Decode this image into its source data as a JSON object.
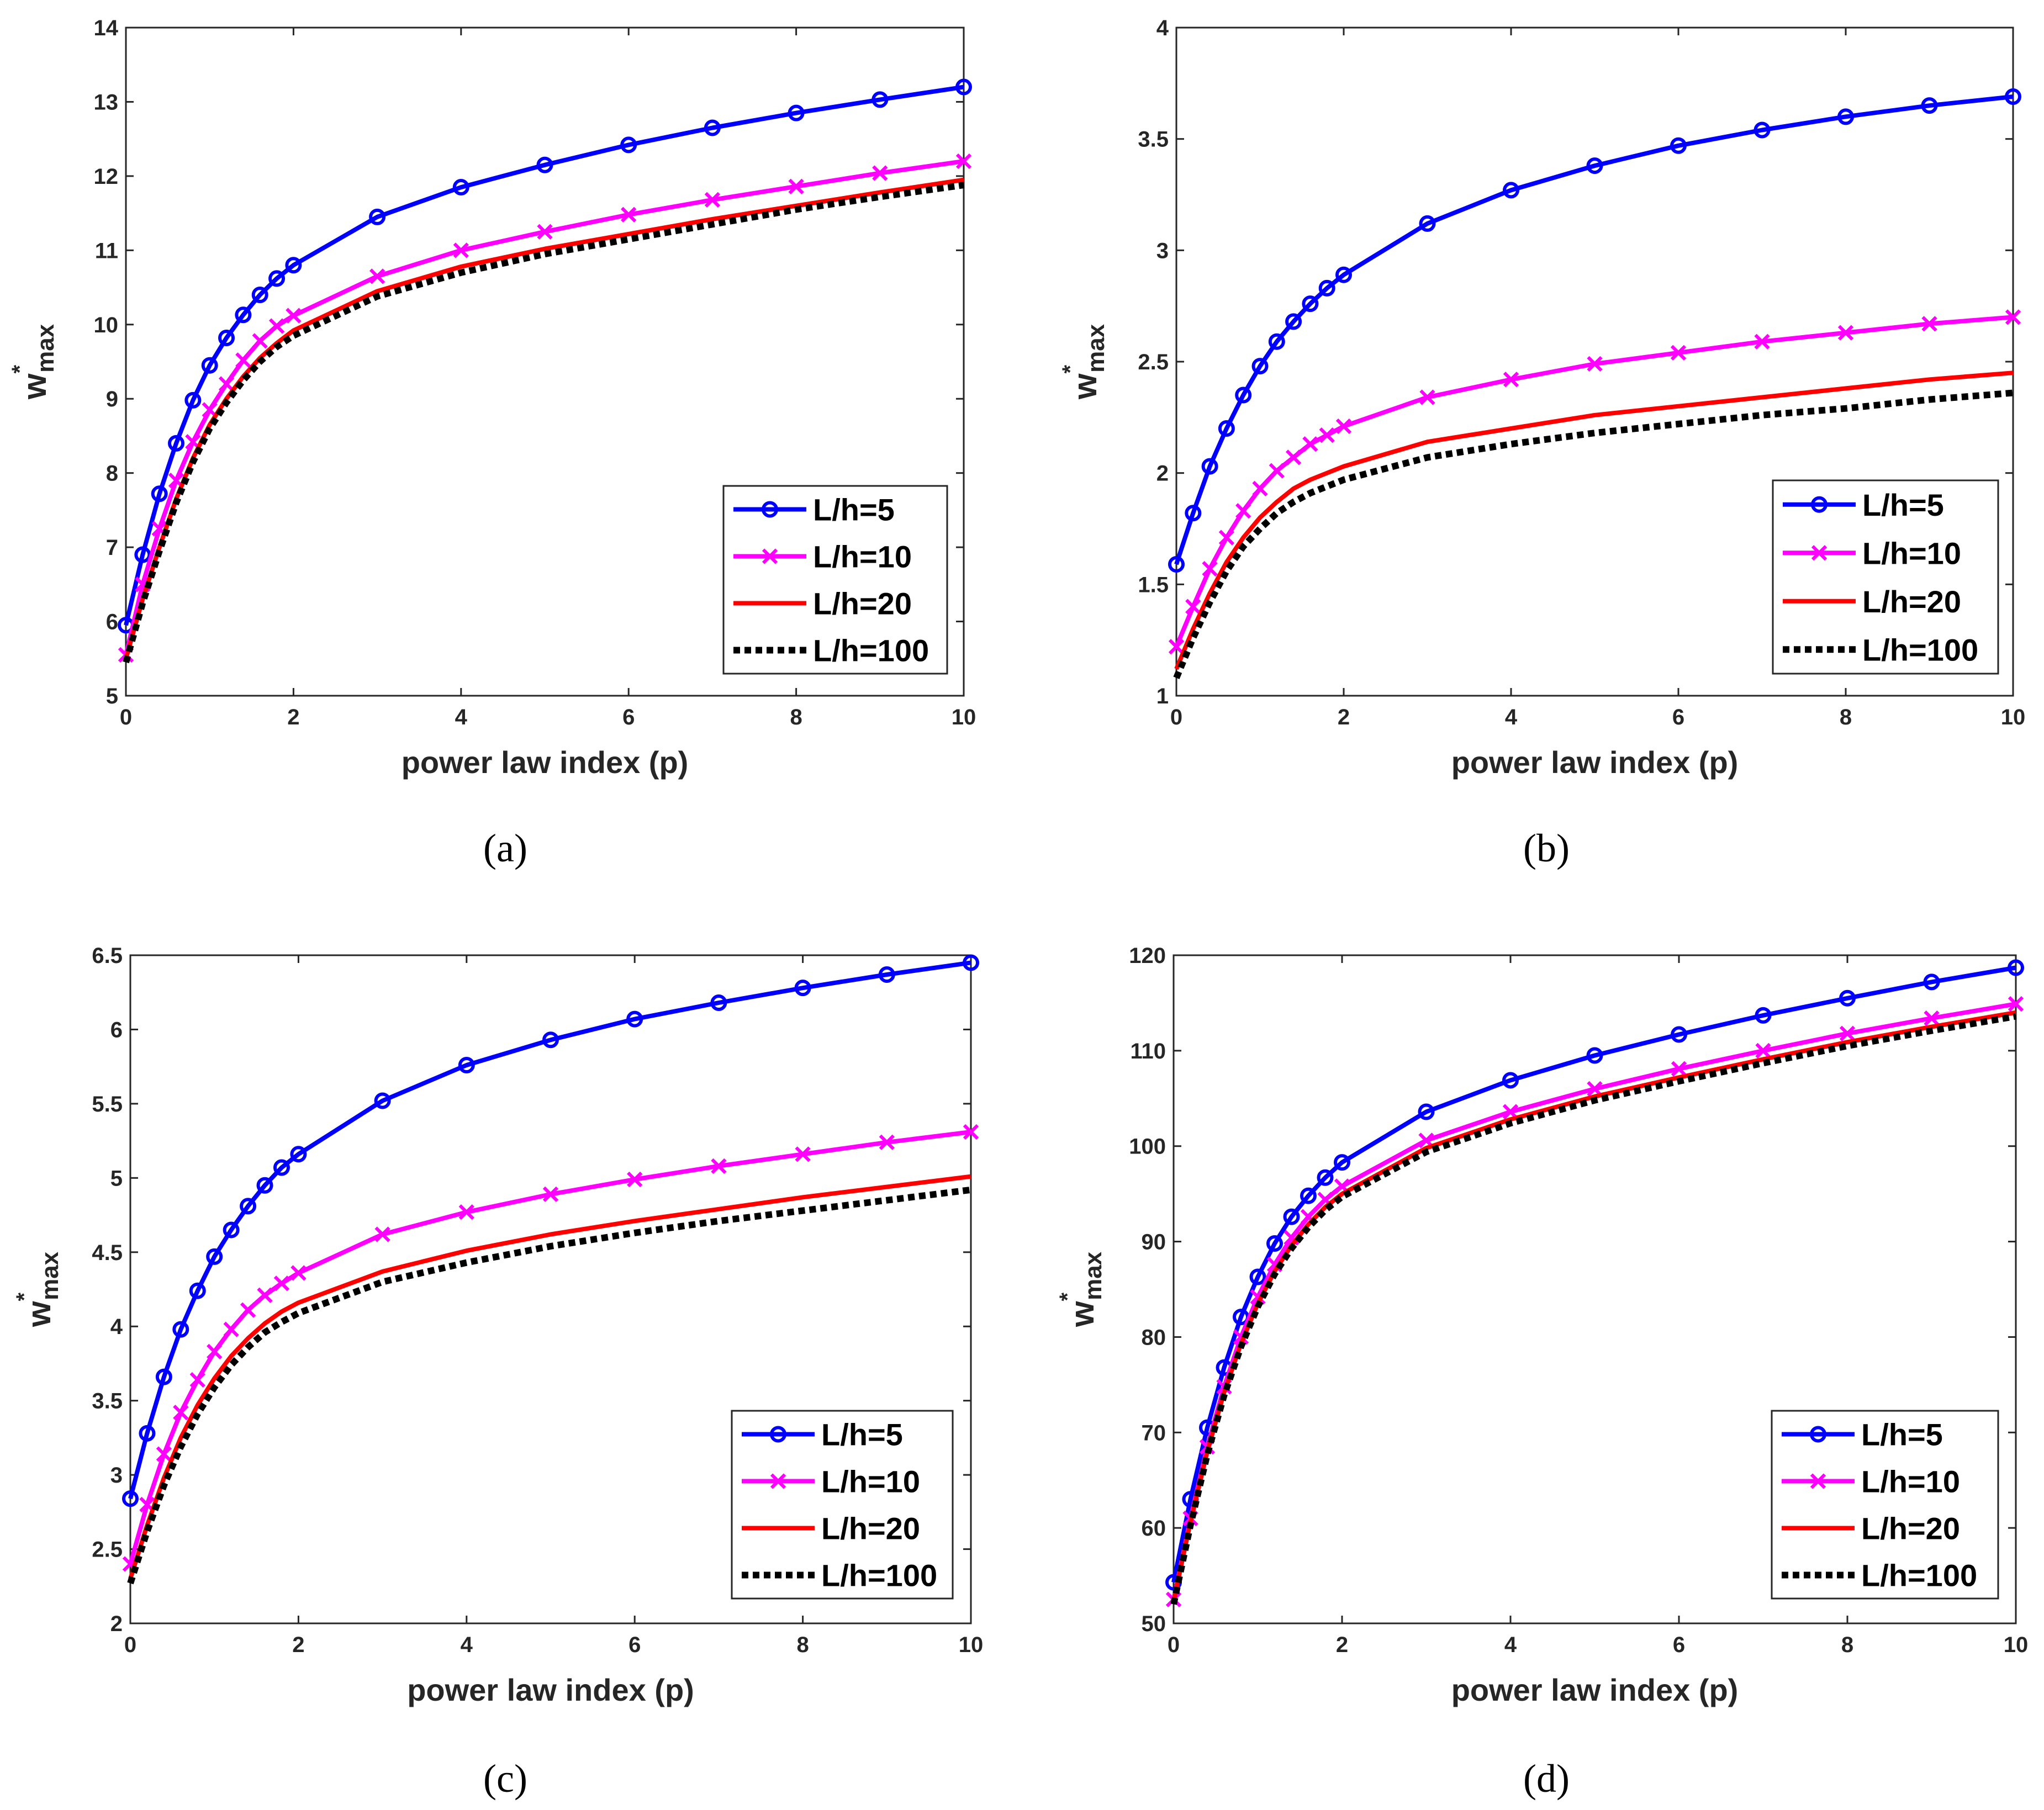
{
  "chart_data": [
    {
      "type": "line",
      "panel": "a",
      "caption": "(a)",
      "xlabel": "power law index (p)",
      "ylabel": {
        "base": "w",
        "sup": "*",
        "sub": "max"
      },
      "xlim": [
        0,
        10
      ],
      "ylim": [
        5,
        14
      ],
      "xticks": [
        "0",
        "2",
        "4",
        "6",
        "8",
        "10"
      ],
      "yticks": [
        "5",
        "6",
        "7",
        "8",
        "9",
        "10",
        "11",
        "12",
        "13",
        "14"
      ],
      "legend_position": "bottom-right",
      "series": [
        {
          "name": "L/h=5",
          "color": "#0000ff",
          "style": "circle",
          "x": [
            0,
            0.2,
            0.4,
            0.6,
            0.8,
            1,
            1.2,
            1.4,
            1.6,
            1.8,
            2,
            3,
            4,
            5,
            6,
            7,
            8,
            9,
            10
          ],
          "y": [
            5.95,
            6.9,
            7.72,
            8.4,
            8.98,
            9.45,
            9.82,
            10.13,
            10.4,
            10.62,
            10.8,
            11.45,
            11.85,
            12.15,
            12.42,
            12.65,
            12.85,
            13.03,
            13.2
          ]
        },
        {
          "name": "L/h=10",
          "color": "#ff00ff",
          "style": "x",
          "x": [
            0,
            0.2,
            0.4,
            0.6,
            0.8,
            1,
            1.2,
            1.4,
            1.6,
            1.8,
            2,
            3,
            4,
            5,
            6,
            7,
            8,
            9,
            10
          ],
          "y": [
            5.55,
            6.5,
            7.25,
            7.9,
            8.42,
            8.85,
            9.2,
            9.52,
            9.78,
            9.98,
            10.12,
            10.65,
            11.0,
            11.25,
            11.48,
            11.68,
            11.86,
            12.04,
            12.2
          ]
        },
        {
          "name": "L/h=20",
          "color": "#ff0000",
          "style": "solid",
          "x": [
            0,
            0.2,
            0.4,
            0.6,
            0.8,
            1,
            1.2,
            1.4,
            1.6,
            1.8,
            2,
            3,
            4,
            5,
            6,
            7,
            8,
            9,
            10
          ],
          "y": [
            5.5,
            6.3,
            7.0,
            7.65,
            8.2,
            8.65,
            9.0,
            9.3,
            9.55,
            9.75,
            9.92,
            10.45,
            10.78,
            11.02,
            11.22,
            11.42,
            11.6,
            11.78,
            11.95
          ]
        },
        {
          "name": "L/h=100",
          "color": "#000000",
          "style": "dotted",
          "x": [
            0,
            0.2,
            0.4,
            0.6,
            0.8,
            1,
            1.2,
            1.4,
            1.6,
            1.8,
            2,
            3,
            4,
            5,
            6,
            7,
            8,
            9,
            10
          ],
          "y": [
            5.45,
            6.25,
            6.95,
            7.6,
            8.15,
            8.6,
            8.95,
            9.25,
            9.5,
            9.7,
            9.85,
            10.38,
            10.7,
            10.95,
            11.15,
            11.35,
            11.55,
            11.72,
            11.88
          ]
        }
      ]
    },
    {
      "type": "line",
      "panel": "b",
      "caption": "(b)",
      "xlabel": "power law index (p)",
      "ylabel": {
        "base": "w",
        "sup": "*",
        "sub": "max"
      },
      "xlim": [
        0,
        10
      ],
      "ylim": [
        1,
        4
      ],
      "xticks": [
        "0",
        "2",
        "4",
        "6",
        "8",
        "10"
      ],
      "yticks": [
        "1",
        "1.5",
        "2",
        "2.5",
        "3",
        "3.5",
        "4"
      ],
      "legend_position": "bottom-right",
      "series": [
        {
          "name": "L/h=5",
          "color": "#0000ff",
          "style": "circle",
          "x": [
            0,
            0.2,
            0.4,
            0.6,
            0.8,
            1,
            1.2,
            1.4,
            1.6,
            1.8,
            2,
            3,
            4,
            5,
            6,
            7,
            8,
            9,
            10
          ],
          "y": [
            1.59,
            1.82,
            2.03,
            2.2,
            2.35,
            2.48,
            2.59,
            2.68,
            2.76,
            2.83,
            2.89,
            3.12,
            3.27,
            3.38,
            3.47,
            3.54,
            3.6,
            3.65,
            3.69
          ]
        },
        {
          "name": "L/h=10",
          "color": "#ff00ff",
          "style": "x",
          "x": [
            0,
            0.2,
            0.4,
            0.6,
            0.8,
            1,
            1.2,
            1.4,
            1.6,
            1.8,
            2,
            3,
            4,
            5,
            6,
            7,
            8,
            9,
            10
          ],
          "y": [
            1.22,
            1.4,
            1.57,
            1.71,
            1.83,
            1.93,
            2.01,
            2.07,
            2.13,
            2.17,
            2.21,
            2.34,
            2.42,
            2.49,
            2.54,
            2.59,
            2.63,
            2.67,
            2.7
          ]
        },
        {
          "name": "L/h=20",
          "color": "#ff0000",
          "style": "solid",
          "x": [
            0,
            0.2,
            0.4,
            0.6,
            0.8,
            1,
            1.2,
            1.4,
            1.6,
            1.8,
            2,
            3,
            4,
            5,
            6,
            7,
            8,
            9,
            10
          ],
          "y": [
            1.12,
            1.3,
            1.46,
            1.6,
            1.71,
            1.8,
            1.87,
            1.93,
            1.97,
            2.0,
            2.03,
            2.14,
            2.2,
            2.26,
            2.3,
            2.34,
            2.38,
            2.42,
            2.45
          ]
        },
        {
          "name": "L/h=100",
          "color": "#000000",
          "style": "dotted",
          "x": [
            0,
            0.2,
            0.4,
            0.6,
            0.8,
            1,
            1.2,
            1.4,
            1.6,
            1.8,
            2,
            3,
            4,
            5,
            6,
            7,
            8,
            9,
            10
          ],
          "y": [
            1.08,
            1.26,
            1.42,
            1.56,
            1.67,
            1.75,
            1.82,
            1.87,
            1.91,
            1.94,
            1.97,
            2.07,
            2.13,
            2.18,
            2.22,
            2.26,
            2.29,
            2.33,
            2.36
          ]
        }
      ]
    },
    {
      "type": "line",
      "panel": "c",
      "caption": "(c)",
      "xlabel": "power law index (p)",
      "ylabel": {
        "base": "w",
        "sup": "*",
        "sub": "max"
      },
      "xlim": [
        0,
        10
      ],
      "ylim": [
        2,
        6.5
      ],
      "xticks": [
        "0",
        "2",
        "4",
        "6",
        "8",
        "10"
      ],
      "yticks": [
        "2",
        "2.5",
        "3",
        "3.5",
        "4",
        "4.5",
        "5",
        "5.5",
        "6",
        "6.5"
      ],
      "legend_position": "bottom-right",
      "series": [
        {
          "name": "L/h=5",
          "color": "#0000ff",
          "style": "circle",
          "x": [
            0,
            0.2,
            0.4,
            0.6,
            0.8,
            1,
            1.2,
            1.4,
            1.6,
            1.8,
            2,
            3,
            4,
            5,
            6,
            7,
            8,
            9,
            10
          ],
          "y": [
            2.84,
            3.28,
            3.66,
            3.98,
            4.24,
            4.47,
            4.65,
            4.81,
            4.95,
            5.07,
            5.16,
            5.52,
            5.76,
            5.93,
            6.07,
            6.18,
            6.28,
            6.37,
            6.45
          ]
        },
        {
          "name": "L/h=10",
          "color": "#ff00ff",
          "style": "x",
          "x": [
            0,
            0.2,
            0.4,
            0.6,
            0.8,
            1,
            1.2,
            1.4,
            1.6,
            1.8,
            2,
            3,
            4,
            5,
            6,
            7,
            8,
            9,
            10
          ],
          "y": [
            2.4,
            2.8,
            3.14,
            3.42,
            3.64,
            3.83,
            3.98,
            4.11,
            4.21,
            4.29,
            4.36,
            4.62,
            4.77,
            4.89,
            4.99,
            5.08,
            5.16,
            5.24,
            5.31
          ]
        },
        {
          "name": "L/h=20",
          "color": "#ff0000",
          "style": "solid",
          "x": [
            0,
            0.2,
            0.4,
            0.6,
            0.8,
            1,
            1.2,
            1.4,
            1.6,
            1.8,
            2,
            3,
            4,
            5,
            6,
            7,
            8,
            9,
            10
          ],
          "y": [
            2.3,
            2.66,
            2.98,
            3.25,
            3.47,
            3.65,
            3.8,
            3.92,
            4.02,
            4.1,
            4.16,
            4.37,
            4.51,
            4.62,
            4.71,
            4.79,
            4.87,
            4.94,
            5.01
          ]
        },
        {
          "name": "L/h=100",
          "color": "#000000",
          "style": "dotted",
          "x": [
            0,
            0.2,
            0.4,
            0.6,
            0.8,
            1,
            1.2,
            1.4,
            1.6,
            1.8,
            2,
            3,
            4,
            5,
            6,
            7,
            8,
            9,
            10
          ],
          "y": [
            2.27,
            2.62,
            2.93,
            3.19,
            3.41,
            3.59,
            3.74,
            3.86,
            3.96,
            4.03,
            4.09,
            4.3,
            4.43,
            4.54,
            4.63,
            4.71,
            4.78,
            4.85,
            4.92
          ]
        }
      ]
    },
    {
      "type": "line",
      "panel": "d",
      "caption": "(d)",
      "xlabel": "power law index (p)",
      "ylabel": {
        "base": "w",
        "sup": "*",
        "sub": "max"
      },
      "xlim": [
        0,
        10
      ],
      "ylim": [
        50,
        120
      ],
      "xticks": [
        "0",
        "2",
        "4",
        "6",
        "8",
        "10"
      ],
      "yticks": [
        "50",
        "60",
        "70",
        "80",
        "90",
        "100",
        "110",
        "120"
      ],
      "legend_position": "bottom-right",
      "series": [
        {
          "name": "L/h=5",
          "color": "#0000ff",
          "style": "circle",
          "x": [
            0,
            0.2,
            0.4,
            0.6,
            0.8,
            1,
            1.2,
            1.4,
            1.6,
            1.8,
            2,
            3,
            4,
            5,
            6,
            7,
            8,
            9,
            10
          ],
          "y": [
            54.3,
            63.0,
            70.5,
            76.8,
            82.1,
            86.3,
            89.8,
            92.6,
            94.8,
            96.7,
            98.3,
            103.6,
            106.9,
            109.5,
            111.7,
            113.7,
            115.5,
            117.2,
            118.7
          ]
        },
        {
          "name": "L/h=10",
          "color": "#ff00ff",
          "style": "x",
          "x": [
            0,
            0.2,
            0.4,
            0.6,
            0.8,
            1,
            1.2,
            1.4,
            1.6,
            1.8,
            2,
            3,
            4,
            5,
            6,
            7,
            8,
            9,
            10
          ],
          "y": [
            52.5,
            61.0,
            68.5,
            74.8,
            80.0,
            84.2,
            87.6,
            90.4,
            92.6,
            94.4,
            95.8,
            100.6,
            103.6,
            106.0,
            108.1,
            110.0,
            111.8,
            113.4,
            114.9
          ]
        },
        {
          "name": "L/h=20",
          "color": "#ff0000",
          "style": "solid",
          "x": [
            0,
            0.2,
            0.4,
            0.6,
            0.8,
            1,
            1.2,
            1.4,
            1.6,
            1.8,
            2,
            3,
            4,
            5,
            6,
            7,
            8,
            9,
            10
          ],
          "y": [
            52.3,
            60.6,
            68.0,
            74.2,
            79.3,
            83.5,
            86.9,
            89.6,
            91.8,
            93.6,
            95.0,
            99.8,
            102.8,
            105.2,
            107.2,
            109.1,
            110.9,
            112.5,
            114.0
          ]
        },
        {
          "name": "L/h=100",
          "color": "#000000",
          "style": "dotted",
          "x": [
            0,
            0.2,
            0.4,
            0.6,
            0.8,
            1,
            1.2,
            1.4,
            1.6,
            1.8,
            2,
            3,
            4,
            5,
            6,
            7,
            8,
            9,
            10
          ],
          "y": [
            52.0,
            60.3,
            67.7,
            73.9,
            79.0,
            83.2,
            86.6,
            89.3,
            91.5,
            93.3,
            94.7,
            99.4,
            102.4,
            104.8,
            106.8,
            108.7,
            110.5,
            112.1,
            113.6
          ]
        }
      ]
    }
  ]
}
